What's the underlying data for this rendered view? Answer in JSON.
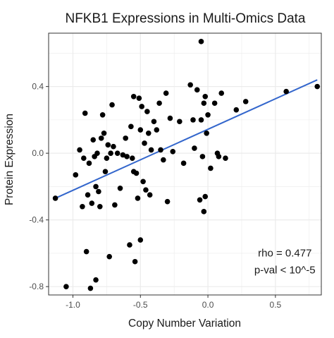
{
  "chart_data": {
    "type": "scatter",
    "title": "NFKB1 Expressions in Multi-Omics Data",
    "xlabel": "Copy Number Variation",
    "ylabel": "Protein Expression",
    "xlim": [
      -1.18,
      0.84
    ],
    "ylim": [
      -0.85,
      0.72
    ],
    "x_ticks": [
      -1.0,
      -0.5,
      0.0,
      0.5
    ],
    "x_tick_labels": [
      "-1.0",
      "-0.5",
      "0.0",
      "0.5"
    ],
    "y_ticks": [
      -0.8,
      -0.4,
      0.0,
      0.4
    ],
    "y_tick_labels": [
      "-0.8",
      "-0.4",
      "0.0",
      "0.4"
    ],
    "grid": true,
    "colors": {
      "points": "#000000",
      "fit_line": "#3366cc",
      "grid": "#ebebeb",
      "panel_border": "#333333"
    },
    "points": [
      {
        "x": -1.13,
        "y": -0.27
      },
      {
        "x": -1.05,
        "y": -0.8
      },
      {
        "x": -0.98,
        "y": -0.13
      },
      {
        "x": -0.95,
        "y": 0.02
      },
      {
        "x": -0.93,
        "y": -0.32
      },
      {
        "x": -0.92,
        "y": -0.03
      },
      {
        "x": -0.91,
        "y": 0.24
      },
      {
        "x": -0.9,
        "y": -0.59
      },
      {
        "x": -0.89,
        "y": -0.25
      },
      {
        "x": -0.88,
        "y": -0.06
      },
      {
        "x": -0.87,
        "y": -0.81
      },
      {
        "x": -0.86,
        "y": -0.3
      },
      {
        "x": -0.85,
        "y": 0.08
      },
      {
        "x": -0.84,
        "y": -0.02
      },
      {
        "x": -0.83,
        "y": -0.2
      },
      {
        "x": -0.83,
        "y": -0.76
      },
      {
        "x": -0.82,
        "y": 0.0
      },
      {
        "x": -0.81,
        "y": -0.23
      },
      {
        "x": -0.8,
        "y": -0.32
      },
      {
        "x": -0.79,
        "y": 0.09
      },
      {
        "x": -0.78,
        "y": 0.23
      },
      {
        "x": -0.77,
        "y": 0.12
      },
      {
        "x": -0.76,
        "y": -0.11
      },
      {
        "x": -0.75,
        "y": -0.03
      },
      {
        "x": -0.74,
        "y": 0.05
      },
      {
        "x": -0.73,
        "y": -0.62
      },
      {
        "x": -0.72,
        "y": 0.0
      },
      {
        "x": -0.71,
        "y": 0.29
      },
      {
        "x": -0.7,
        "y": 0.04
      },
      {
        "x": -0.69,
        "y": -0.31
      },
      {
        "x": -0.67,
        "y": 0.0
      },
      {
        "x": -0.65,
        "y": -0.21
      },
      {
        "x": -0.63,
        "y": -0.01
      },
      {
        "x": -0.61,
        "y": 0.09
      },
      {
        "x": -0.6,
        "y": -0.02
      },
      {
        "x": -0.58,
        "y": -0.55
      },
      {
        "x": -0.57,
        "y": 0.16
      },
      {
        "x": -0.56,
        "y": -0.03
      },
      {
        "x": -0.55,
        "y": -0.11
      },
      {
        "x": -0.55,
        "y": 0.34
      },
      {
        "x": -0.54,
        "y": -0.65
      },
      {
        "x": -0.53,
        "y": -0.12
      },
      {
        "x": -0.52,
        "y": -0.27
      },
      {
        "x": -0.51,
        "y": 0.33
      },
      {
        "x": -0.5,
        "y": 0.14
      },
      {
        "x": -0.5,
        "y": -0.52
      },
      {
        "x": -0.49,
        "y": 0.28
      },
      {
        "x": -0.48,
        "y": -0.17
      },
      {
        "x": -0.47,
        "y": 0.06
      },
      {
        "x": -0.46,
        "y": -0.22
      },
      {
        "x": -0.45,
        "y": 0.25
      },
      {
        "x": -0.44,
        "y": 0.12
      },
      {
        "x": -0.43,
        "y": -0.25
      },
      {
        "x": -0.42,
        "y": 0.02
      },
      {
        "x": -0.4,
        "y": 0.19
      },
      {
        "x": -0.38,
        "y": 0.14
      },
      {
        "x": -0.36,
        "y": 0.3
      },
      {
        "x": -0.35,
        "y": 0.02
      },
      {
        "x": -0.33,
        "y": -0.04
      },
      {
        "x": -0.31,
        "y": 0.36
      },
      {
        "x": -0.3,
        "y": -0.29
      },
      {
        "x": -0.28,
        "y": 0.21
      },
      {
        "x": -0.26,
        "y": 0.01
      },
      {
        "x": -0.21,
        "y": 0.19
      },
      {
        "x": -0.18,
        "y": -0.06
      },
      {
        "x": -0.13,
        "y": 0.41
      },
      {
        "x": -0.11,
        "y": 0.2
      },
      {
        "x": -0.1,
        "y": 0.03
      },
      {
        "x": -0.08,
        "y": 0.38
      },
      {
        "x": -0.06,
        "y": -0.28
      },
      {
        "x": -0.05,
        "y": 0.67
      },
      {
        "x": -0.05,
        "y": 0.2
      },
      {
        "x": -0.04,
        "y": -0.02
      },
      {
        "x": -0.03,
        "y": -0.35
      },
      {
        "x": -0.03,
        "y": 0.3
      },
      {
        "x": -0.02,
        "y": -0.26
      },
      {
        "x": -0.02,
        "y": 0.34
      },
      {
        "x": -0.01,
        "y": 0.12
      },
      {
        "x": 0.0,
        "y": 0.23
      },
      {
        "x": 0.02,
        "y": -0.09
      },
      {
        "x": 0.05,
        "y": 0.3
      },
      {
        "x": 0.07,
        "y": 0.0
      },
      {
        "x": 0.08,
        "y": -0.02
      },
      {
        "x": 0.1,
        "y": 0.36
      },
      {
        "x": 0.13,
        "y": -0.03
      },
      {
        "x": 0.21,
        "y": 0.26
      },
      {
        "x": 0.28,
        "y": 0.31
      },
      {
        "x": 0.58,
        "y": 0.37
      },
      {
        "x": 0.81,
        "y": 0.4
      }
    ],
    "fit_line": {
      "x": [
        -1.13,
        0.81
      ],
      "y": [
        -0.27,
        0.44
      ]
    },
    "annotations": [
      {
        "text": "rho =  0.477",
        "x": 0.57,
        "y": -0.62
      },
      {
        "text": "p-val < 10^-5",
        "x": 0.57,
        "y": -0.72
      }
    ]
  }
}
